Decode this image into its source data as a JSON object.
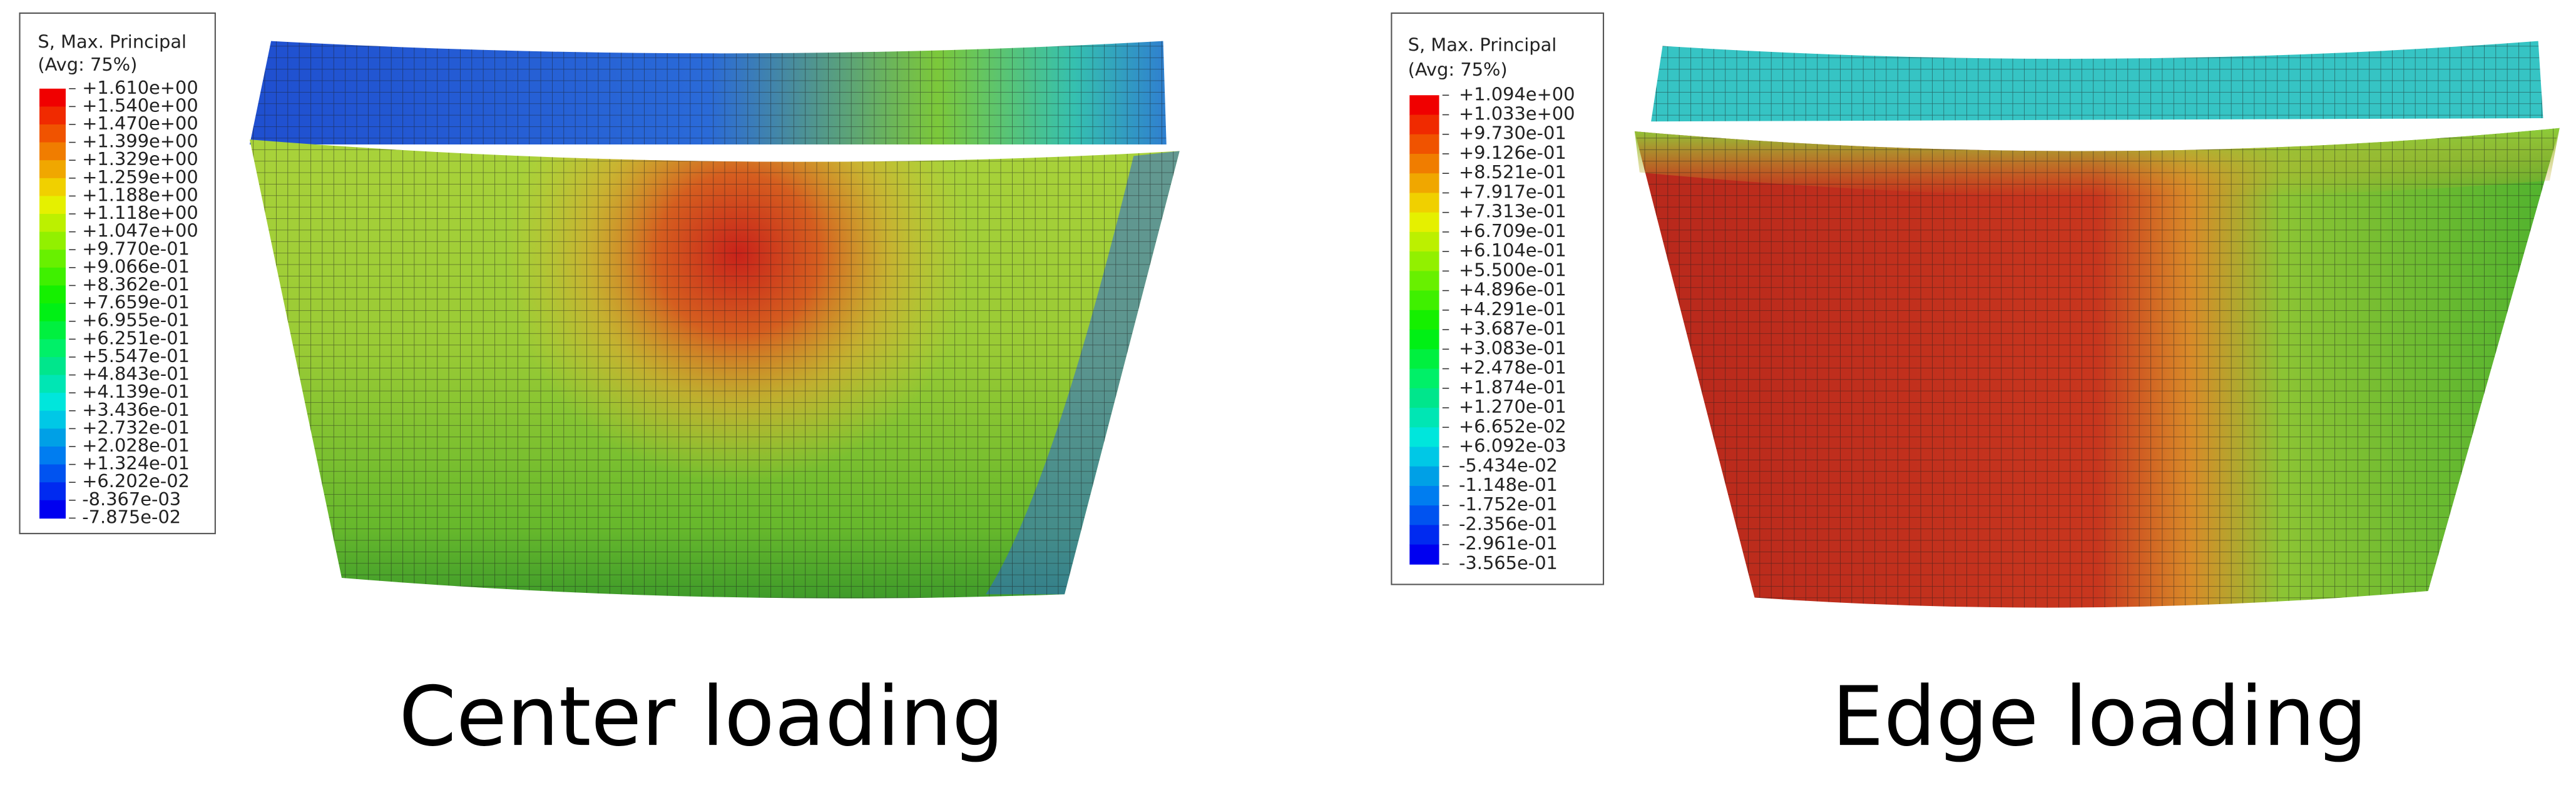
{
  "panels": [
    {
      "legend": {
        "title": "S, Max. Principal",
        "subtitle": "(Avg: 75%)",
        "labels": [
          "+1.610e+00",
          "+1.540e+00",
          "+1.470e+00",
          "+1.399e+00",
          "+1.329e+00",
          "+1.259e+00",
          "+1.188e+00",
          "+1.118e+00",
          "+1.047e+00",
          "+9.770e-01",
          "+9.066e-01",
          "+8.362e-01",
          "+7.659e-01",
          "+6.955e-01",
          "+6.251e-01",
          "+5.547e-01",
          "+4.843e-01",
          "+4.139e-01",
          "+3.436e-01",
          "+2.732e-01",
          "+2.028e-01",
          "+1.324e-01",
          "+6.202e-02",
          "-8.367e-03",
          "-7.875e-02"
        ]
      },
      "caption": "Center loading"
    },
    {
      "legend": {
        "title": "S, Max. Principal",
        "subtitle": "(Avg: 75%)",
        "labels": [
          "+1.094e+00",
          "+1.033e+00",
          "+9.730e-01",
          "+9.126e-01",
          "+8.521e-01",
          "+7.917e-01",
          "+7.313e-01",
          "+6.709e-01",
          "+6.104e-01",
          "+5.500e-01",
          "+4.896e-01",
          "+4.291e-01",
          "+3.687e-01",
          "+3.083e-01",
          "+2.478e-01",
          "+1.874e-01",
          "+1.270e-01",
          "+6.652e-02",
          "+6.092e-03",
          "-5.434e-02",
          "-1.148e-01",
          "-1.752e-01",
          "-2.356e-01",
          "-2.961e-01",
          "-3.565e-01"
        ]
      },
      "caption": "Edge loading"
    }
  ]
}
